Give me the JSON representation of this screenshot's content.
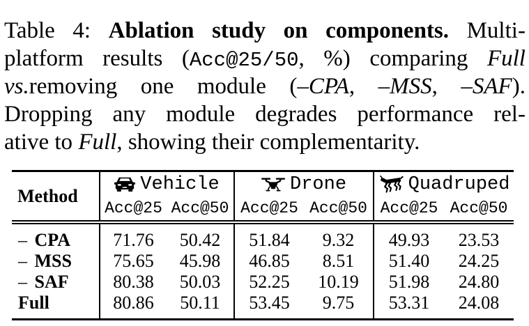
{
  "caption": {
    "lines": [
      {
        "justify": true,
        "segments": [
          {
            "t": "Table 4: ",
            "s": "rm"
          },
          {
            "t": "Ablation study on components.",
            "s": "bf"
          },
          {
            "t": " Multi-",
            "s": "rm"
          }
        ]
      },
      {
        "justify": true,
        "segments": [
          {
            "t": "platform results (",
            "s": "rm"
          },
          {
            "t": "Acc@25/50",
            "s": "tt"
          },
          {
            "t": ", %) comparing ",
            "s": "rm"
          },
          {
            "t": "Full",
            "s": "it"
          }
        ]
      },
      {
        "justify": true,
        "segments": [
          {
            "t": "vs.",
            "s": "it"
          },
          {
            "t": "removing one module (",
            "s": "rm"
          },
          {
            "t": "–CPA",
            "s": "it"
          },
          {
            "t": ", ",
            "s": "rm"
          },
          {
            "t": "–MSS",
            "s": "it"
          },
          {
            "t": ", ",
            "s": "rm"
          },
          {
            "t": "–SAF",
            "s": "it"
          },
          {
            "t": ").",
            "s": "rm"
          }
        ]
      },
      {
        "justify": true,
        "segments": [
          {
            "t": "Dropping any module degrades performance rel-",
            "s": "rm"
          }
        ]
      },
      {
        "justify": false,
        "segments": [
          {
            "t": "ative to ",
            "s": "rm"
          },
          {
            "t": "Full",
            "s": "it"
          },
          {
            "t": ", showing their complementarity.",
            "s": "rm"
          }
        ]
      }
    ]
  },
  "table": {
    "method_header": "Method",
    "groups": [
      {
        "icon": "car-icon",
        "label": "Vehicle",
        "sub": [
          "Acc@25",
          "Acc@50"
        ]
      },
      {
        "icon": "drone-icon",
        "label": "Drone",
        "sub": [
          "Acc@25",
          "Acc@50"
        ]
      },
      {
        "icon": "quadruped-icon",
        "label": "Quadruped",
        "sub": [
          "Acc@25",
          "Acc@50"
        ]
      }
    ],
    "rows": [
      {
        "prefix": "– ",
        "name": "CPA",
        "values": [
          "71.76",
          "50.42",
          "51.84",
          "9.32",
          "49.93",
          "23.53"
        ]
      },
      {
        "prefix": "– ",
        "name": "MSS",
        "values": [
          "75.65",
          "45.98",
          "46.85",
          "8.51",
          "51.40",
          "24.25"
        ]
      },
      {
        "prefix": "– ",
        "name": "SAF",
        "values": [
          "80.38",
          "50.03",
          "52.25",
          "10.19",
          "51.98",
          "24.80"
        ]
      },
      {
        "prefix": "",
        "name": "Full",
        "values": [
          "80.86",
          "50.11",
          "53.45",
          "9.75",
          "53.31",
          "24.08"
        ]
      }
    ]
  },
  "colors": {
    "text": "#000000",
    "background": "#ffffff",
    "rule": "#000000"
  }
}
